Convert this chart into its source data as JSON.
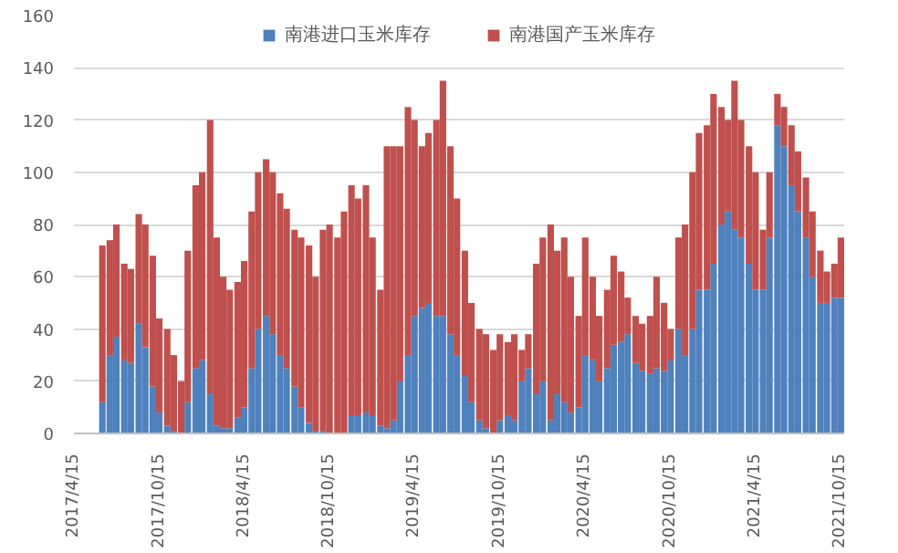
{
  "chart_data": {
    "type": "bar",
    "stacked": true,
    "x": [
      "2017-06-15",
      "2017-07-01",
      "2017-07-15",
      "2017-08-01",
      "2017-08-15",
      "2017-09-01",
      "2017-09-15",
      "2017-10-01",
      "2017-10-15",
      "2017-11-01",
      "2017-11-15",
      "2017-12-01",
      "2017-12-15",
      "2018-01-01",
      "2018-01-15",
      "2018-02-01",
      "2018-02-15",
      "2018-03-01",
      "2018-03-15",
      "2018-04-01",
      "2018-04-15",
      "2018-05-01",
      "2018-05-15",
      "2018-06-01",
      "2018-06-15",
      "2018-07-01",
      "2018-07-15",
      "2018-08-01",
      "2018-08-15",
      "2018-09-01",
      "2018-09-15",
      "2018-10-01",
      "2018-10-15",
      "2018-11-01",
      "2018-11-15",
      "2018-12-01",
      "2018-12-15",
      "2019-01-01",
      "2019-01-15",
      "2019-02-01",
      "2019-02-15",
      "2019-03-01",
      "2019-03-15",
      "2019-04-01",
      "2019-04-15",
      "2019-05-01",
      "2019-05-15",
      "2019-06-01",
      "2019-06-15",
      "2019-07-01",
      "2019-07-15",
      "2019-08-01",
      "2019-08-15",
      "2019-09-01",
      "2019-09-15",
      "2019-10-01",
      "2019-10-15",
      "2019-11-01",
      "2019-11-15",
      "2019-12-01",
      "2019-12-15",
      "2020-01-01",
      "2020-01-15",
      "2020-02-01",
      "2020-02-15",
      "2020-03-01",
      "2020-03-15",
      "2020-04-01",
      "2020-04-15",
      "2020-05-01",
      "2020-05-15",
      "2020-06-01",
      "2020-06-15",
      "2020-07-01",
      "2020-07-15",
      "2020-08-01",
      "2020-08-15",
      "2020-09-01",
      "2020-09-15",
      "2020-10-01",
      "2020-10-15",
      "2020-11-01",
      "2020-11-15",
      "2020-12-01",
      "2020-12-15",
      "2021-01-01",
      "2021-01-15",
      "2021-02-01",
      "2021-02-15",
      "2021-03-01",
      "2021-03-15",
      "2021-04-01",
      "2021-04-15",
      "2021-05-01",
      "2021-05-15",
      "2021-06-01",
      "2021-06-15",
      "2021-07-01",
      "2021-07-15",
      "2021-08-01",
      "2021-08-15",
      "2021-09-01",
      "2021-09-15",
      "2021-10-01",
      "2021-10-15"
    ],
    "series": [
      {
        "name": "南港进口玉米库存",
        "color": "#4f81bd",
        "values": [
          12,
          30,
          37,
          28,
          27,
          42,
          33,
          18,
          8,
          3,
          1,
          0,
          12,
          25,
          28,
          15,
          3,
          2,
          2,
          6,
          10,
          25,
          40,
          45,
          38,
          30,
          25,
          18,
          10,
          4,
          1,
          1,
          0,
          0,
          0,
          7,
          7,
          8,
          7,
          3,
          2,
          5,
          20,
          30,
          45,
          48,
          50,
          45,
          45,
          38,
          30,
          22,
          12,
          5,
          2,
          0,
          5,
          7,
          5,
          20,
          25,
          15,
          20,
          5,
          15,
          12,
          8,
          10,
          30,
          28,
          20,
          25,
          34,
          35,
          38,
          27,
          24,
          23,
          25,
          24,
          28,
          40,
          30,
          40,
          55,
          55,
          65,
          80,
          85,
          78,
          75,
          65,
          55,
          55,
          75,
          118,
          110,
          95,
          85,
          75,
          60,
          50,
          50,
          52,
          52
        ]
      },
      {
        "name": "南港国产玉米库存",
        "color": "#c0504d",
        "values": [
          60,
          44,
          43,
          37,
          36,
          42,
          47,
          50,
          36,
          37,
          29,
          20,
          58,
          70,
          72,
          105,
          72,
          58,
          53,
          52,
          56,
          60,
          60,
          60,
          62,
          62,
          61,
          60,
          65,
          68,
          59,
          77,
          80,
          75,
          85,
          88,
          83,
          87,
          68,
          52,
          108,
          105,
          90,
          95,
          75,
          62,
          65,
          75,
          90,
          72,
          60,
          48,
          38,
          35,
          36,
          32,
          33,
          28,
          33,
          12,
          13,
          50,
          55,
          75,
          55,
          63,
          52,
          35,
          45,
          32,
          25,
          30,
          34,
          27,
          14,
          18,
          18,
          22,
          35,
          26,
          12,
          35,
          50,
          60,
          60,
          63,
          65,
          45,
          35,
          57,
          45,
          45,
          45,
          23,
          25,
          12,
          15,
          23,
          23,
          23,
          25,
          20,
          12,
          13,
          23
        ]
      }
    ],
    "xlim": [
      "2017-04-15",
      "2021-10-22"
    ],
    "xticks": [
      {
        "value": "2017-04-15",
        "label": "2017/4/15"
      },
      {
        "value": "2017-10-15",
        "label": "2017/10/15"
      },
      {
        "value": "2018-04-15",
        "label": "2018/4/15"
      },
      {
        "value": "2018-10-15",
        "label": "2018/10/15"
      },
      {
        "value": "2019-04-15",
        "label": "2019/4/15"
      },
      {
        "value": "2019-10-15",
        "label": "2019/10/15"
      },
      {
        "value": "2020-04-15",
        "label": "2020/4/15"
      },
      {
        "value": "2020-10-15",
        "label": "2020/10/15"
      },
      {
        "value": "2021-04-15",
        "label": "2021/4/15"
      },
      {
        "value": "2021-10-15",
        "label": "2021/10/15"
      }
    ],
    "ylim": [
      0,
      160
    ],
    "yticks": [
      0,
      20,
      40,
      60,
      80,
      100,
      120,
      140,
      160
    ],
    "grid": "y",
    "legend": "top"
  }
}
